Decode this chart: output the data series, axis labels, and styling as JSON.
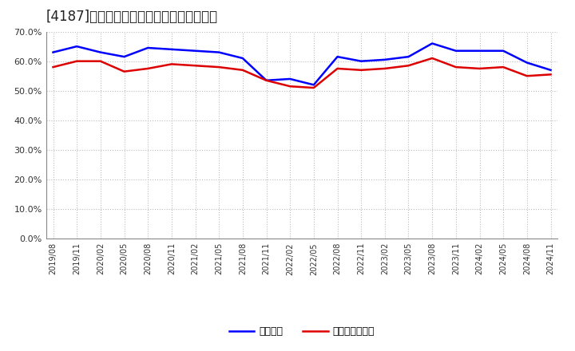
{
  "title": "[4187]　固定比率、固定長期適合率の推移",
  "x_labels": [
    "2019/08",
    "2019/11",
    "2020/02",
    "2020/05",
    "2020/08",
    "2020/11",
    "2021/02",
    "2021/05",
    "2021/08",
    "2021/11",
    "2022/02",
    "2022/05",
    "2022/08",
    "2022/11",
    "2023/02",
    "2023/05",
    "2023/08",
    "2023/11",
    "2024/02",
    "2024/05",
    "2024/08",
    "2024/11"
  ],
  "fixed_ratio": [
    63.0,
    65.0,
    63.0,
    61.5,
    64.5,
    64.0,
    63.5,
    63.0,
    61.0,
    53.5,
    54.0,
    52.0,
    61.5,
    60.0,
    60.5,
    61.5,
    66.0,
    63.5,
    63.5,
    63.5,
    59.5,
    57.0
  ],
  "fixed_long_ratio": [
    58.0,
    60.0,
    60.0,
    56.5,
    57.5,
    59.0,
    58.5,
    58.0,
    57.0,
    53.5,
    51.5,
    51.0,
    57.5,
    57.0,
    57.5,
    58.5,
    61.0,
    58.0,
    57.5,
    58.0,
    55.0,
    55.5
  ],
  "line1_color": "#0000ff",
  "line2_color": "#dd0000",
  "line1_label": "固定比率",
  "line2_label": "固定長期適合率",
  "ylim": [
    0,
    70
  ],
  "yticks": [
    0,
    10,
    20,
    30,
    40,
    50,
    60,
    70
  ],
  "background_color": "#ffffff",
  "grid_color": "#bbbbbb",
  "title_fontsize": 12,
  "tick_fontsize": 7,
  "legend_fontsize": 9
}
